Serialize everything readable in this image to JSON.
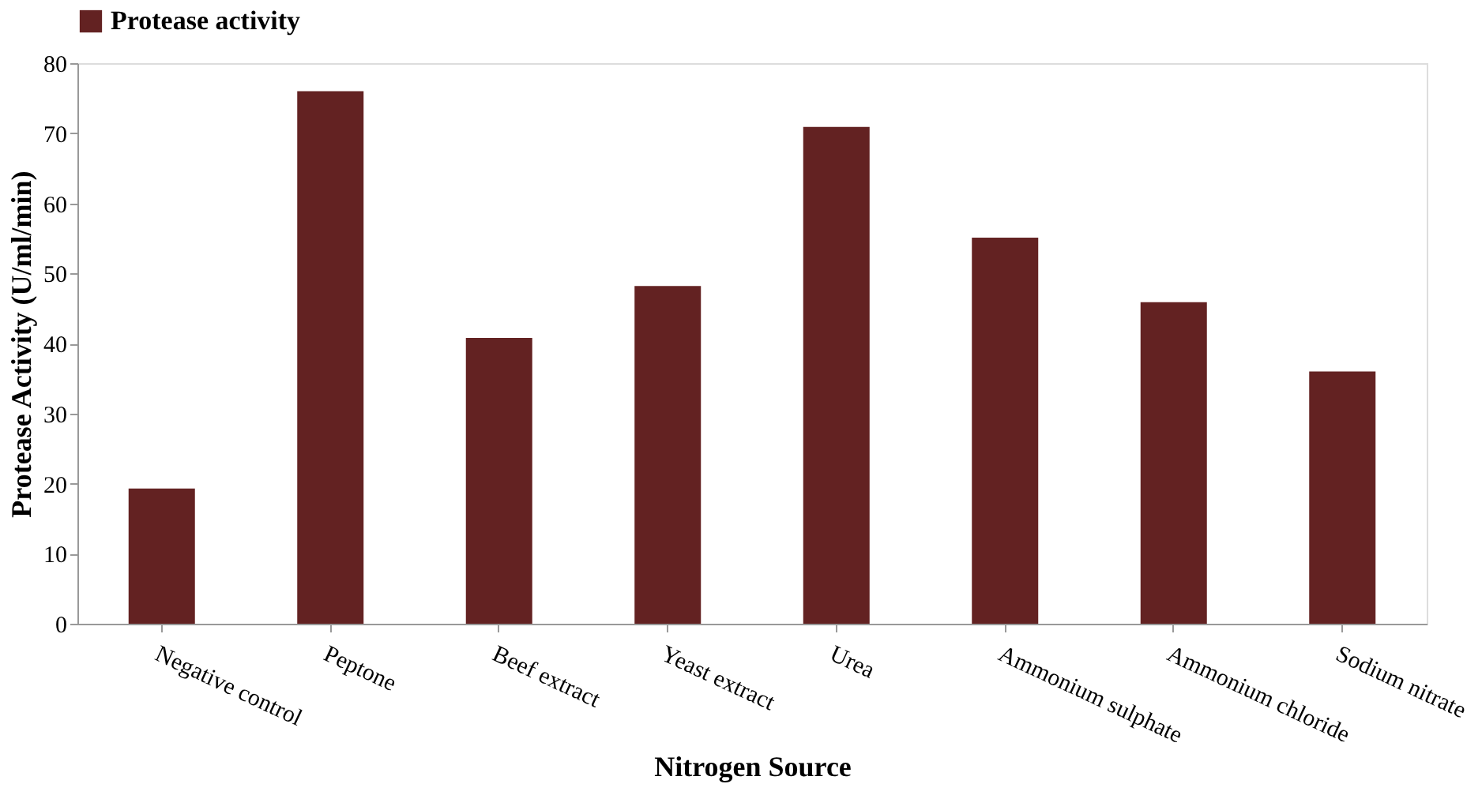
{
  "chart_data": {
    "type": "bar",
    "xlabel": "Nitrogen Source",
    "ylabel": "Protease Activity (U/ml/min)",
    "categories": [
      "Negative control",
      "Peptone",
      "Beef extract",
      "Yeast extract",
      "Urea",
      "Ammonium sulphate",
      "Ammonium chloride",
      "Sodium nitrate"
    ],
    "series": [
      {
        "name": "Protease activity",
        "color": "#632222",
        "values": [
          19.3,
          76,
          40.8,
          48.2,
          70.9,
          55.1,
          45.9,
          36
        ]
      }
    ],
    "ylim": [
      0,
      80
    ],
    "yticks": [
      0,
      10,
      20,
      30,
      40,
      50,
      60,
      70,
      80
    ],
    "grid": false,
    "legend": "top"
  }
}
